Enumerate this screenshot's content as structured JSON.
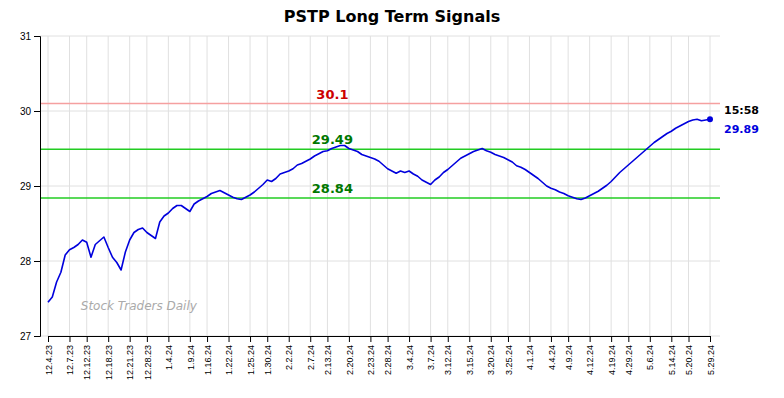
{
  "chart_data": {
    "type": "line",
    "title": "PSTP Long Term Signals",
    "color": "#0000dd",
    "ylim": [
      27,
      31
    ],
    "yticks": [
      27,
      28,
      29,
      30,
      31
    ],
    "grid": true,
    "categories": [
      "12.4.23",
      null,
      null,
      null,
      null,
      "12.7.23",
      null,
      null,
      null,
      "12.12.23",
      null,
      null,
      null,
      null,
      "12.18.23",
      null,
      null,
      null,
      null,
      "12.21.23",
      null,
      null,
      null,
      "12.28.23",
      null,
      null,
      null,
      null,
      "1.4.24",
      null,
      null,
      null,
      null,
      "1.9.24",
      null,
      null,
      null,
      "1.16.24",
      null,
      null,
      null,
      null,
      "1.22.24",
      null,
      null,
      null,
      null,
      "1.25.24",
      null,
      null,
      null,
      "1.30.24",
      null,
      null,
      null,
      null,
      "2.2.24",
      null,
      null,
      null,
      null,
      "2.7.24",
      null,
      null,
      null,
      "2.13.24",
      null,
      null,
      null,
      null,
      "2.20.24",
      null,
      null,
      null,
      null,
      "2.23.24",
      null,
      null,
      null,
      "2.28.24",
      null,
      null,
      null,
      null,
      "3.4.24",
      null,
      null,
      null,
      null,
      "3.7.24",
      null,
      null,
      null,
      "3.12.24",
      null,
      null,
      null,
      null,
      "3.15.24",
      null,
      null,
      null,
      null,
      "3.20.24",
      null,
      null,
      null,
      "3.25.24",
      null,
      null,
      null,
      null,
      "4.1.24",
      null,
      null,
      null,
      null,
      "4.4.24",
      null,
      null,
      null,
      "4.9.24",
      null,
      null,
      null,
      null,
      "4.12.24",
      null,
      null,
      null,
      null,
      "4.19.24",
      null,
      null,
      null,
      "4.29.24",
      null,
      null,
      null,
      null,
      "5.6.24",
      null,
      null,
      null,
      null,
      "5.14.24",
      null,
      null,
      null,
      "5.20.24",
      null,
      null,
      null,
      null,
      "5.29.24"
    ],
    "values": [
      27.45,
      27.52,
      27.72,
      27.85,
      28.08,
      28.15,
      28.18,
      28.22,
      28.28,
      28.25,
      28.05,
      28.22,
      28.27,
      28.32,
      28.18,
      28.05,
      27.98,
      27.88,
      28.12,
      28.28,
      28.38,
      28.42,
      28.44,
      28.38,
      28.34,
      28.3,
      28.52,
      28.6,
      28.64,
      28.7,
      28.74,
      28.74,
      28.7,
      28.66,
      28.76,
      28.8,
      28.83,
      28.86,
      28.9,
      28.92,
      28.94,
      28.91,
      28.88,
      28.85,
      28.83,
      28.82,
      28.85,
      28.88,
      28.92,
      28.97,
      29.02,
      29.08,
      29.06,
      29.1,
      29.16,
      29.18,
      29.2,
      29.23,
      29.28,
      29.3,
      29.33,
      29.36,
      29.4,
      29.43,
      29.46,
      29.47,
      29.5,
      29.52,
      29.54,
      29.54,
      29.5,
      29.48,
      29.46,
      29.42,
      29.4,
      29.38,
      29.36,
      29.33,
      29.28,
      29.23,
      29.2,
      29.17,
      29.2,
      29.18,
      29.2,
      29.16,
      29.13,
      29.08,
      29.05,
      29.02,
      29.08,
      29.12,
      29.18,
      29.22,
      29.27,
      29.32,
      29.37,
      29.4,
      29.43,
      29.46,
      29.48,
      29.5,
      29.47,
      29.45,
      29.42,
      29.4,
      29.38,
      29.35,
      29.32,
      29.27,
      29.25,
      29.22,
      29.18,
      29.14,
      29.1,
      29.05,
      29.0,
      28.97,
      28.95,
      28.92,
      28.9,
      28.87,
      28.85,
      28.83,
      28.82,
      28.84,
      28.87,
      28.9,
      28.93,
      28.97,
      29.01,
      29.06,
      29.12,
      29.18,
      29.23,
      29.28,
      29.33,
      29.38,
      29.43,
      29.48,
      29.53,
      29.58,
      29.62,
      29.66,
      29.7,
      29.73,
      29.77,
      29.8,
      29.83,
      29.86,
      29.88,
      29.89,
      29.87,
      29.88,
      29.89
    ],
    "reference_lines": [
      {
        "value": 30.1,
        "color": "#f5a0a0",
        "label_color": "#cc0000"
      },
      {
        "value": 29.49,
        "color": "#22cc22",
        "label_color": "#007700"
      },
      {
        "value": 28.84,
        "color": "#22cc22",
        "label_color": "#007700"
      }
    ],
    "annotations": [
      {
        "text": "15:58",
        "color": "#000000"
      },
      {
        "text": "29.89",
        "color": "#0000dd"
      }
    ],
    "watermark": {
      "text": "Stock Traders Daily",
      "color": "#aaaaaa"
    }
  }
}
